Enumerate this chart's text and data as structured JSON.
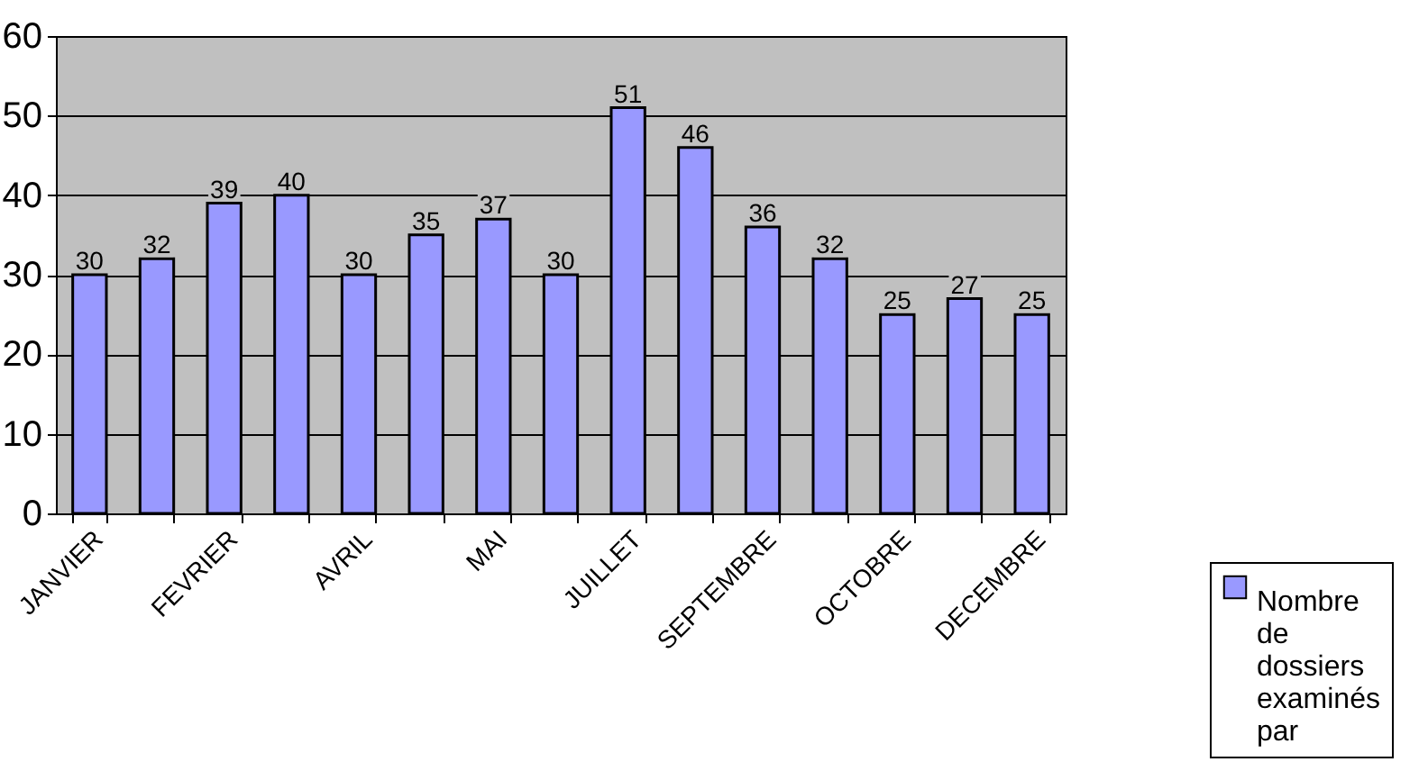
{
  "chart_data": {
    "type": "bar",
    "categories": [
      "JANVIER",
      null,
      "FEVRIER",
      null,
      "AVRIL",
      null,
      "MAI",
      null,
      "JUILLET",
      null,
      "SEPTEMBRE",
      null,
      "OCTOBRE",
      null,
      "DECEMBRE"
    ],
    "series": [
      {
        "name": "Nombre de dossiers examinés par",
        "color": "#9999ff",
        "values": [
          30,
          32,
          39,
          40,
          30,
          35,
          37,
          30,
          51,
          46,
          36,
          32,
          25,
          27,
          25
        ]
      }
    ],
    "ylim": [
      0,
      60
    ],
    "yticks": [
      0,
      10,
      20,
      30,
      40,
      50,
      60
    ],
    "grid": "y",
    "data_labels": true,
    "legend": "bottom right"
  }
}
